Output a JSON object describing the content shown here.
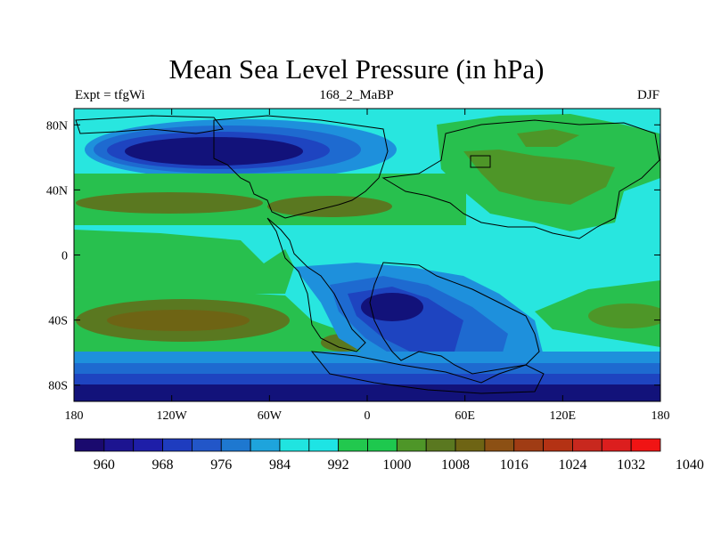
{
  "title": "Mean Sea Level Pressure (in hPa)",
  "subtitle_left": "Expt = tfgWi",
  "subtitle_center": "168_2_MaBP",
  "subtitle_right": "DJF",
  "lat_ticks": [
    {
      "value": 80,
      "label": "80N"
    },
    {
      "value": 40,
      "label": "40N"
    },
    {
      "value": 0,
      "label": "0"
    },
    {
      "value": -40,
      "label": "40S"
    },
    {
      "value": -80,
      "label": "80S"
    }
  ],
  "lon_ticks": [
    {
      "value": -180,
      "label": "180"
    },
    {
      "value": -120,
      "label": "120W"
    },
    {
      "value": -60,
      "label": "60W"
    },
    {
      "value": 0,
      "label": "0"
    },
    {
      "value": 60,
      "label": "60E"
    },
    {
      "value": 120,
      "label": "120E"
    },
    {
      "value": 180,
      "label": "180"
    }
  ],
  "colorbar": {
    "colors": [
      "#1a0a6e",
      "#1c1490",
      "#1e1ea8",
      "#1e3cbf",
      "#2256c8",
      "#1e78d0",
      "#1ea4dc",
      "#20e4e0",
      "#1ee4e4",
      "#22c84e",
      "#1ec84e",
      "#4e9628",
      "#5a7820",
      "#6e6414",
      "#8c5014",
      "#a03c14",
      "#b43214",
      "#c8281e",
      "#dc1e1e",
      "#f01414"
    ],
    "labels": [
      "960",
      "968",
      "976",
      "984",
      "992",
      "1000",
      "1008",
      "1016",
      "1024",
      "1032",
      "1040"
    ]
  },
  "legend_colors": {
    "lowest": "#12127a",
    "low": "#1e44c0",
    "mid_low": "#1e90dc",
    "near": "#28e6df",
    "mid_high": "#28c04e",
    "high": "#4e9628",
    "highest": "#6e6414"
  }
}
